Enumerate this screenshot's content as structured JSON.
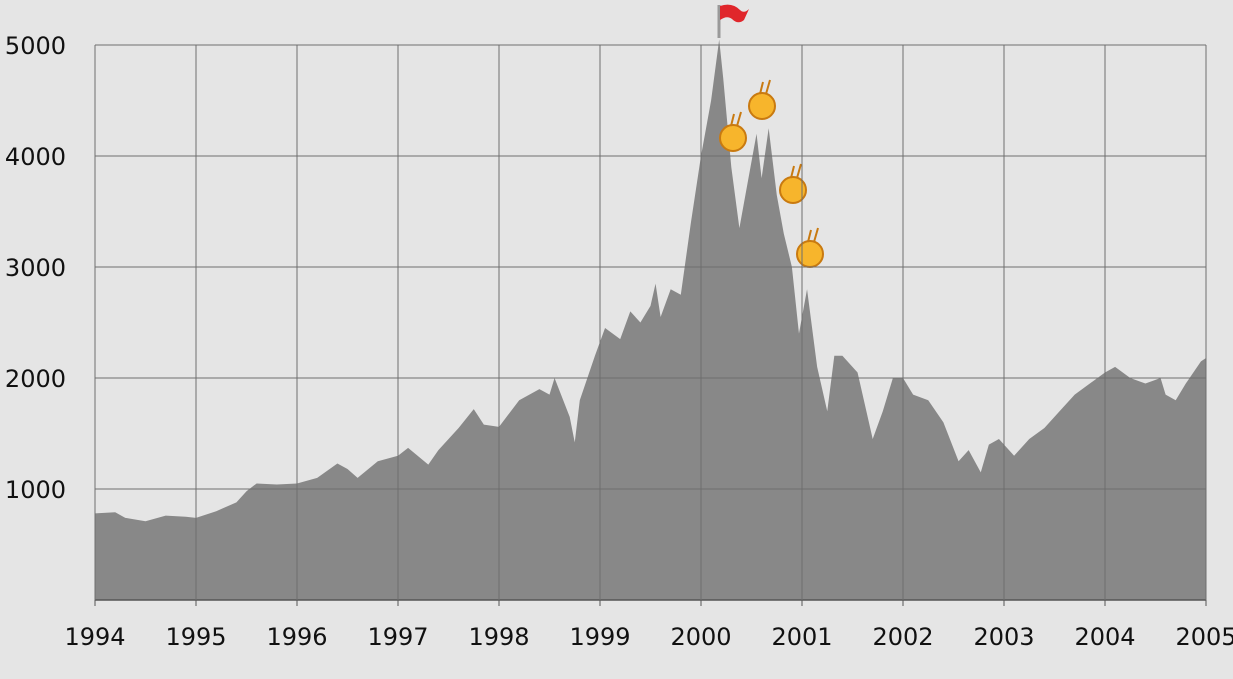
{
  "chart_data": {
    "type": "area",
    "color": "#888888",
    "grid": true,
    "x": [
      1994.0,
      1994.2,
      1994.3,
      1994.5,
      1994.7,
      1994.9,
      1995.0,
      1995.2,
      1995.4,
      1995.5,
      1995.6,
      1995.8,
      1996.0,
      1996.2,
      1996.4,
      1996.5,
      1996.6,
      1996.8,
      1997.0,
      1997.1,
      1997.3,
      1997.4,
      1997.6,
      1997.75,
      1997.85,
      1998.0,
      1998.2,
      1998.4,
      1998.5,
      1998.55,
      1998.7,
      1998.75,
      1998.8,
      1998.95,
      1999.05,
      1999.2,
      1999.3,
      1999.4,
      1999.5,
      1999.55,
      1999.6,
      1999.7,
      1999.8,
      1999.9,
      2000.0,
      2000.1,
      2000.18,
      2000.22,
      2000.3,
      2000.38,
      2000.45,
      2000.55,
      2000.6,
      2000.67,
      2000.75,
      2000.82,
      2000.9,
      2000.97,
      2001.05,
      2001.15,
      2001.25,
      2001.32,
      2001.4,
      2001.55,
      2001.7,
      2001.8,
      2001.9,
      2002.0,
      2002.1,
      2002.25,
      2002.4,
      2002.55,
      2002.65,
      2002.77,
      2002.85,
      2002.95,
      2003.1,
      2003.25,
      2003.4,
      2003.55,
      2003.7,
      2003.85,
      2004.0,
      2004.1,
      2004.25,
      2004.4,
      2004.55,
      2004.6,
      2004.7,
      2004.8,
      2004.95,
      2005.0
    ],
    "values": [
      780,
      790,
      740,
      710,
      760,
      750,
      740,
      800,
      880,
      980,
      1050,
      1040,
      1050,
      1100,
      1230,
      1180,
      1100,
      1250,
      1300,
      1370,
      1220,
      1350,
      1550,
      1720,
      1580,
      1560,
      1800,
      1900,
      1850,
      2000,
      1650,
      1420,
      1800,
      2200,
      2450,
      2350,
      2600,
      2500,
      2650,
      2850,
      2550,
      2800,
      2750,
      3400,
      4000,
      4500,
      5050,
      4700,
      3900,
      3350,
      3700,
      4200,
      3800,
      4250,
      3650,
      3300,
      3000,
      2400,
      2800,
      2100,
      1700,
      2200,
      2200,
      2050,
      1450,
      1700,
      2000,
      2000,
      1850,
      1800,
      1600,
      1250,
      1350,
      1150,
      1400,
      1450,
      1300,
      1450,
      1550,
      1700,
      1850,
      1950,
      2050,
      2100,
      2000,
      1950,
      2000,
      1850,
      1800,
      1950,
      2150,
      2180
    ],
    "xlim": [
      1994,
      2005
    ],
    "xticks": [
      1994,
      1995,
      1996,
      1997,
      1998,
      1999,
      2000,
      2001,
      2002,
      2003,
      2004,
      2005
    ],
    "ylim": [
      0,
      5000
    ],
    "yticks": [
      1000,
      2000,
      3000,
      4000,
      5000
    ]
  }
}
